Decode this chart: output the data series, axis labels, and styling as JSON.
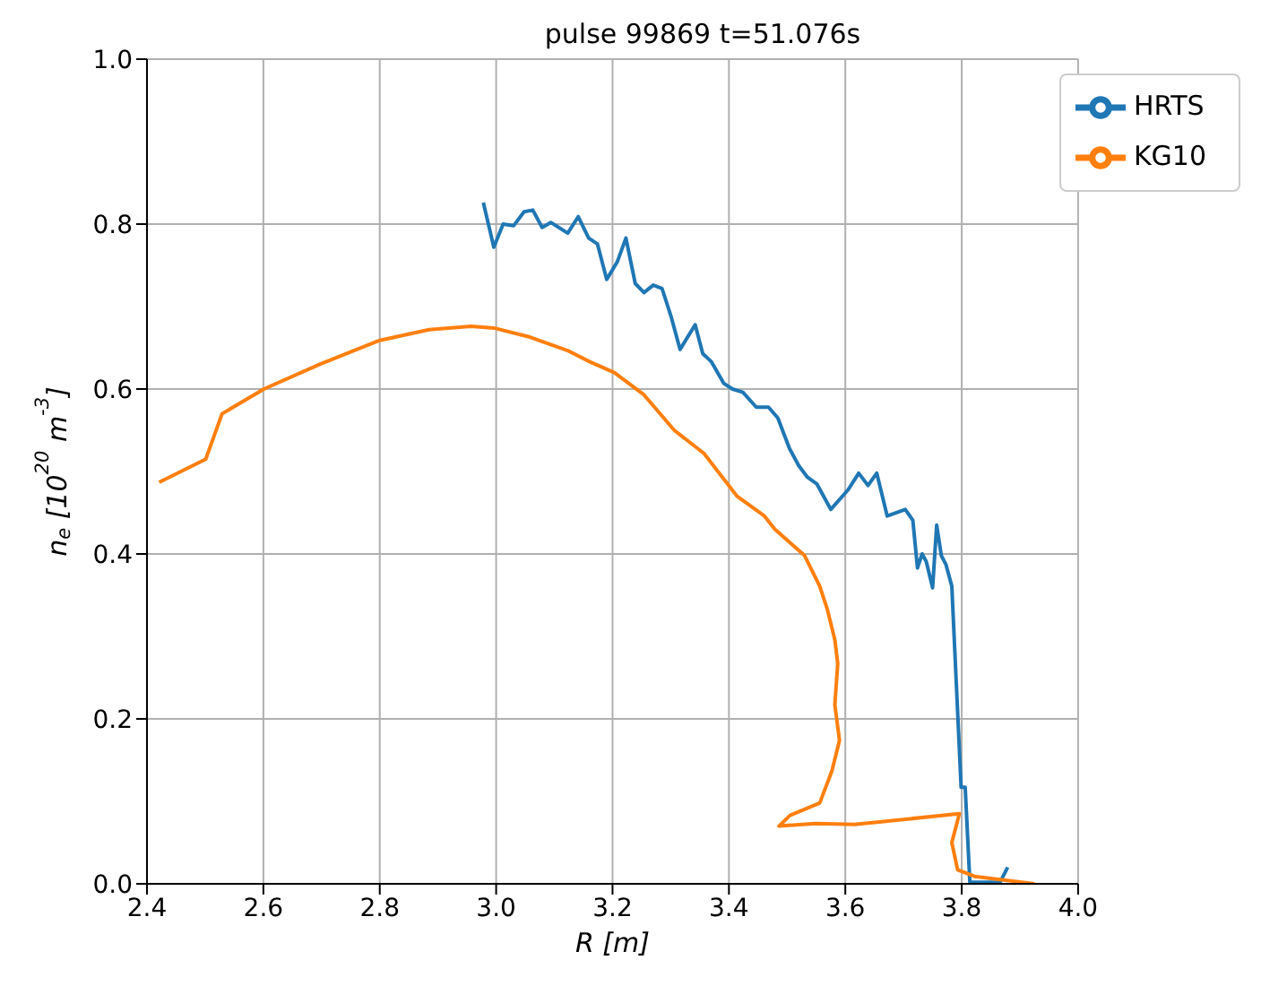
{
  "chart_data": {
    "type": "line",
    "title": "pulse 99869 t=51.076s",
    "xlabel": "R [m]",
    "ylabel": "n$_{e}$ [10$^{20}$ m$^{-3}$]",
    "xlim": [
      2.4,
      4.0
    ],
    "ylim": [
      0,
      1.0
    ],
    "xticks": [
      2.4,
      2.6,
      2.8,
      {
        "value": 3.0,
        "label": "3.0"
      },
      3.2,
      3.4,
      3.6,
      3.8,
      {
        "value": 4.0,
        "label": "4.0"
      }
    ],
    "yticks": [
      {
        "value": 0,
        "label": "0.0"
      },
      0.2,
      0.4,
      0.6,
      0.8,
      {
        "value": 1.0,
        "label": "1.0"
      }
    ],
    "grid": true,
    "legend": "top right",
    "marker": "none",
    "line_style": "solid",
    "series": [
      {
        "name": "HRTS",
        "color": "#1f77b4",
        "x": [
          2.978,
          2.996,
          3.012,
          3.03,
          3.048,
          3.063,
          3.079,
          3.094,
          3.123,
          3.141,
          3.159,
          3.174,
          3.19,
          3.208,
          3.223,
          3.239,
          3.254,
          3.27,
          3.285,
          3.301,
          3.316,
          3.342,
          3.355,
          3.37,
          3.391,
          3.406,
          3.424,
          3.447,
          3.468,
          3.484,
          3.504,
          3.52,
          3.535,
          3.551,
          3.575,
          3.605,
          3.623,
          3.639,
          3.654,
          3.672,
          3.703,
          3.716,
          3.724,
          3.732,
          3.739,
          3.75,
          3.757,
          3.765,
          3.773,
          3.783,
          3.799,
          3.806,
          3.814,
          3.866,
          3.879
        ],
        "values": [
          0.826,
          0.772,
          0.8,
          0.798,
          0.815,
          0.817,
          0.796,
          0.802,
          0.789,
          0.809,
          0.783,
          0.776,
          0.733,
          0.754,
          0.783,
          0.728,
          0.717,
          0.726,
          0.722,
          0.687,
          0.648,
          0.678,
          0.643,
          0.633,
          0.607,
          0.6,
          0.596,
          0.578,
          0.578,
          0.565,
          0.528,
          0.507,
          0.493,
          0.485,
          0.454,
          0.478,
          0.498,
          0.483,
          0.498,
          0.446,
          0.454,
          0.441,
          0.383,
          0.4,
          0.391,
          0.359,
          0.435,
          0.398,
          0.387,
          0.361,
          0.117,
          0.117,
          0.002,
          0.002,
          0.02
        ]
      },
      {
        "name": "KG10",
        "color": "#ff7f0e",
        "x": [
          2.421,
          2.501,
          2.529,
          2.601,
          2.697,
          2.8,
          2.885,
          2.957,
          2.996,
          3.058,
          3.125,
          3.161,
          3.203,
          3.254,
          3.306,
          3.357,
          3.414,
          3.461,
          3.479,
          3.53,
          3.556,
          3.569,
          3.582,
          3.587,
          3.582,
          3.59,
          3.577,
          3.556,
          3.505,
          3.486,
          3.55,
          3.616,
          3.796,
          3.783,
          3.793,
          3.822,
          3.925
        ],
        "values": [
          0.487,
          0.515,
          0.57,
          0.6,
          0.63,
          0.659,
          0.672,
          0.676,
          0.674,
          0.663,
          0.646,
          0.633,
          0.62,
          0.593,
          0.55,
          0.522,
          0.47,
          0.446,
          0.43,
          0.398,
          0.361,
          0.333,
          0.296,
          0.267,
          0.217,
          0.174,
          0.137,
          0.098,
          0.083,
          0.07,
          0.073,
          0.072,
          0.085,
          0.05,
          0.017,
          0.009,
          0.0
        ]
      }
    ]
  }
}
